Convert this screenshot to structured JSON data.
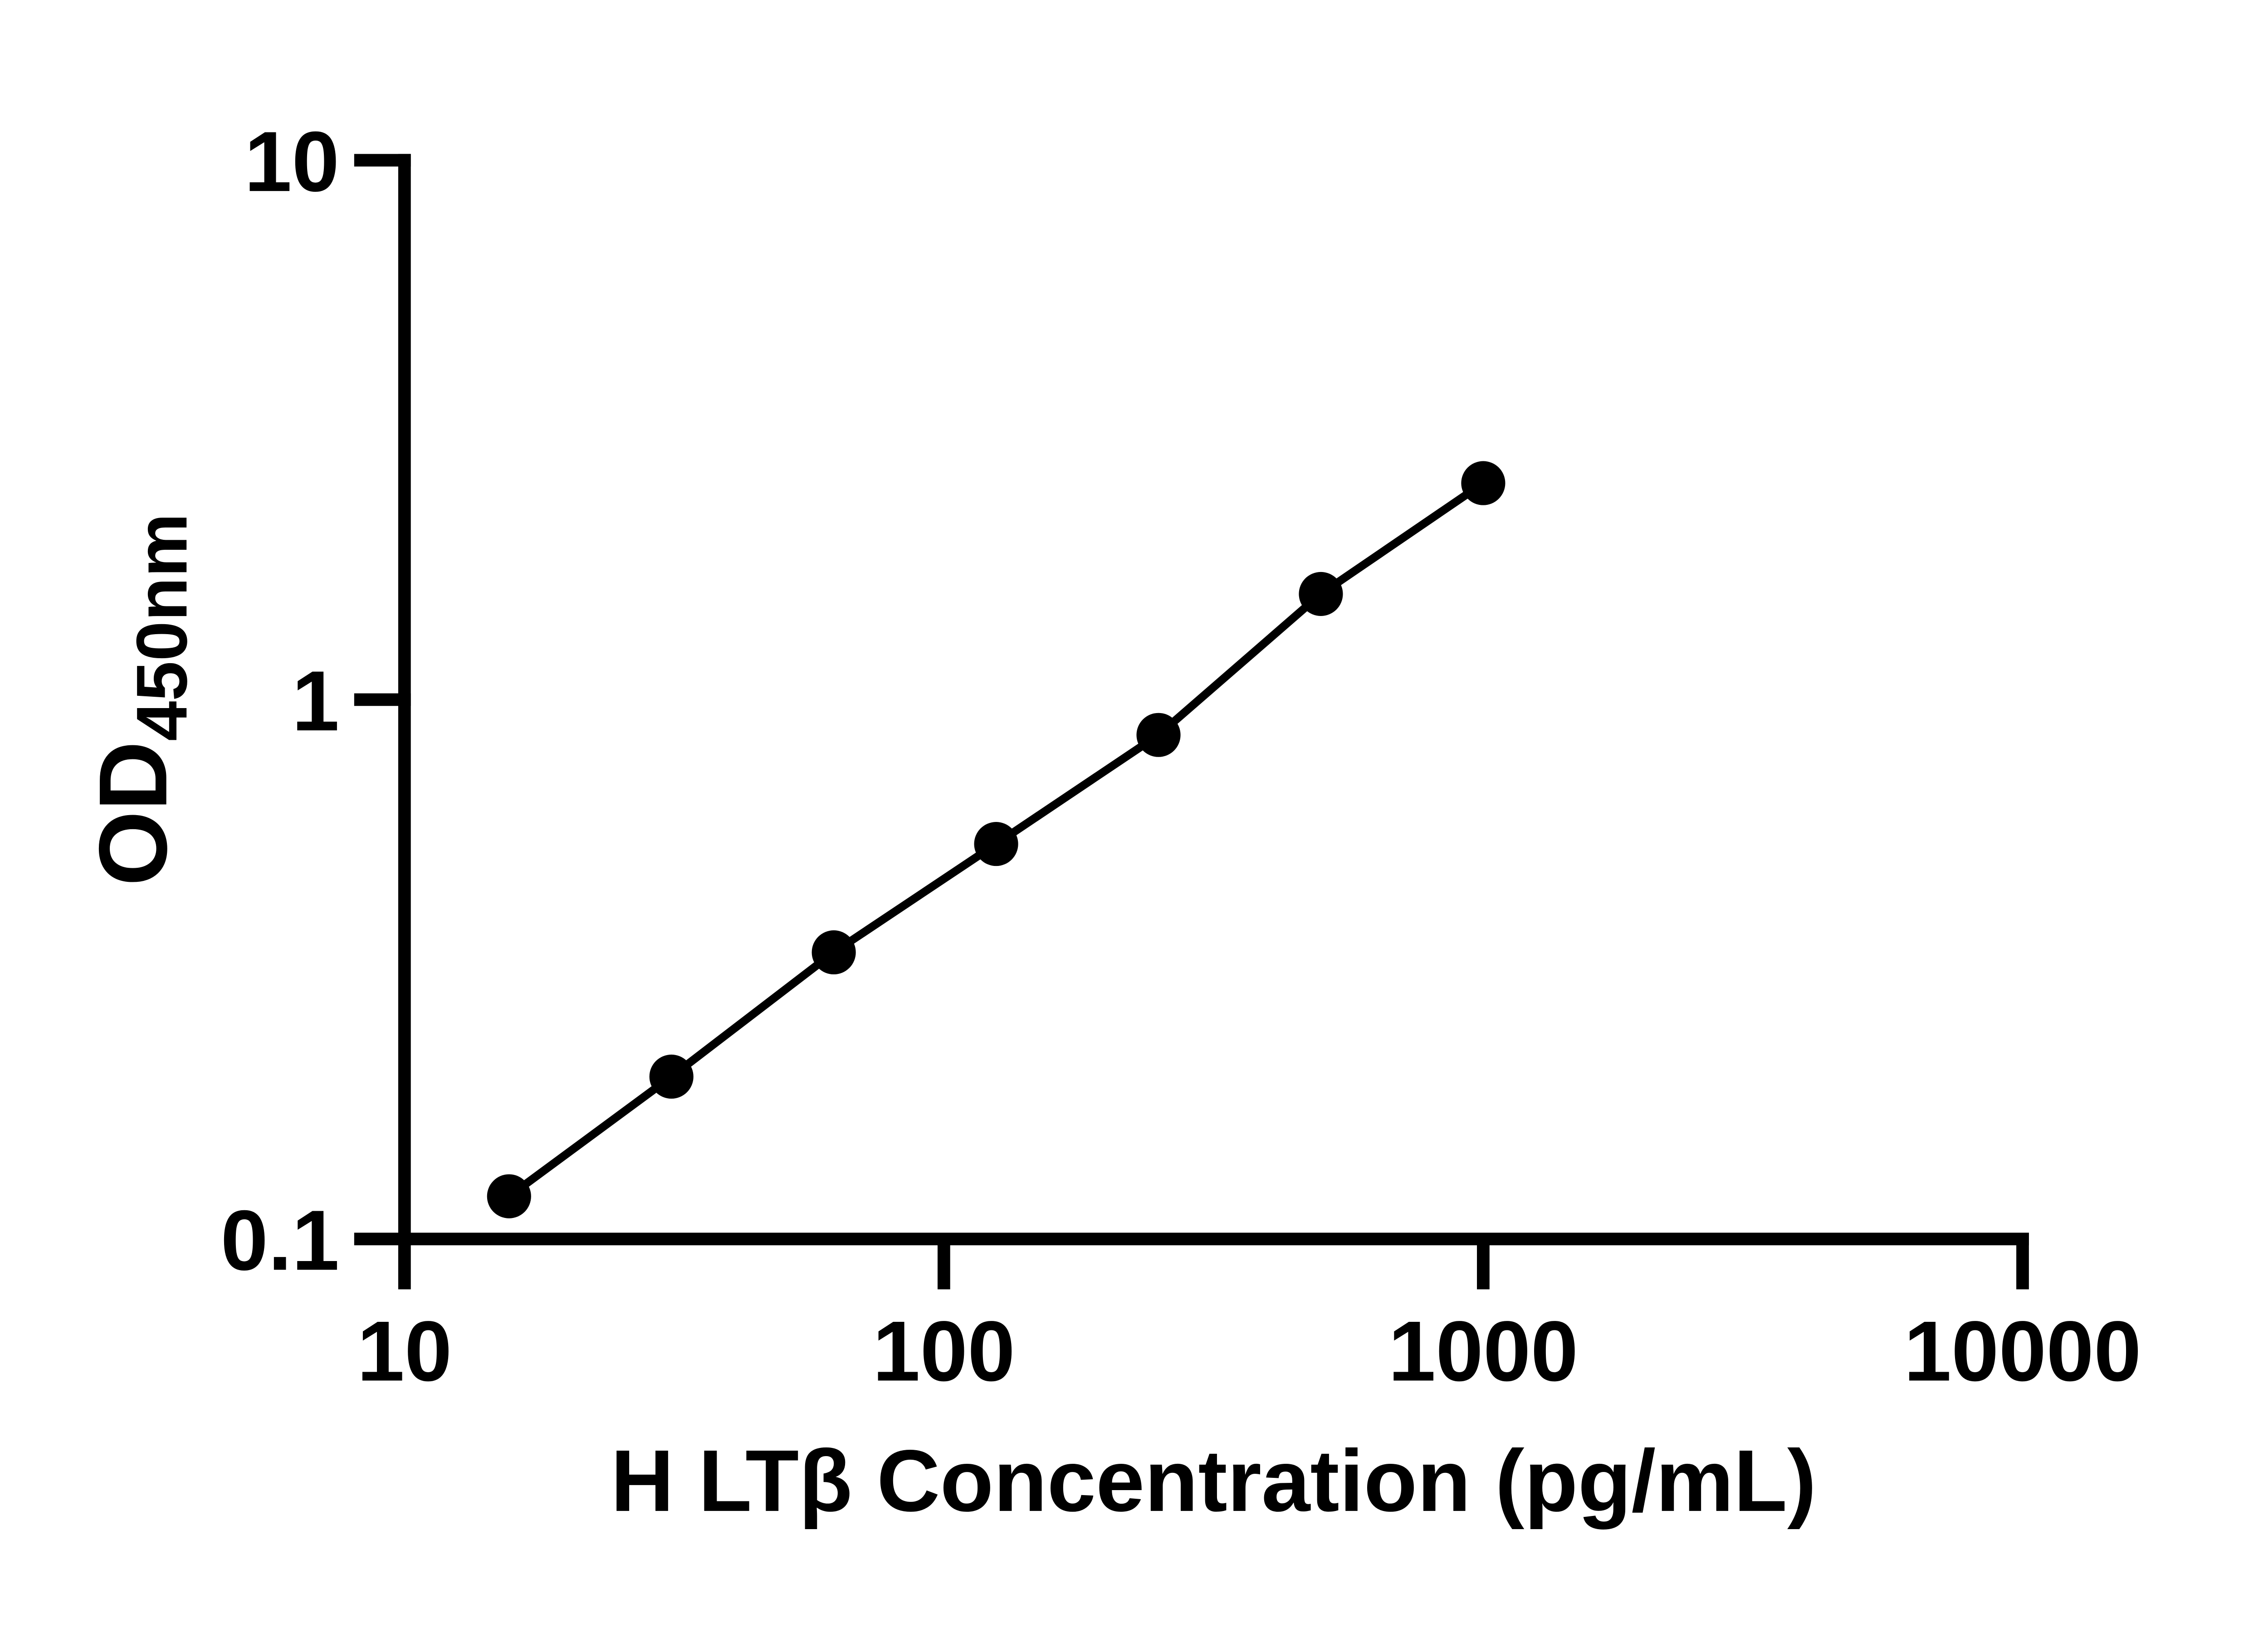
{
  "figure": {
    "background_color": "#ffffff",
    "ink_color": "#000000"
  },
  "chart_data": {
    "type": "scatter",
    "subtype": "line-with-markers",
    "title": "",
    "xlabel": "H LTβ Concentration (pg/mL)",
    "ylabel_main": "OD",
    "ylabel_sub": "450nm",
    "x": [
      15.625,
      31.25,
      62.5,
      125,
      250,
      500,
      1000
    ],
    "y": [
      0.12,
      0.2,
      0.34,
      0.54,
      0.86,
      1.57,
      2.52
    ],
    "x_scale": "log",
    "y_scale": "log",
    "xlim": [
      10,
      10000
    ],
    "ylim": [
      0.1,
      10
    ],
    "x_ticks": [
      10,
      100,
      1000,
      10000
    ],
    "x_tick_labels": [
      "10",
      "100",
      "1000",
      "10000"
    ],
    "y_ticks": [
      0.1,
      1,
      10
    ],
    "y_tick_labels": [
      "0.1",
      "1",
      "10"
    ],
    "grid": false,
    "legend": null,
    "marker": {
      "shape": "circle",
      "color": "#000000"
    },
    "line": {
      "color": "#000000"
    }
  }
}
